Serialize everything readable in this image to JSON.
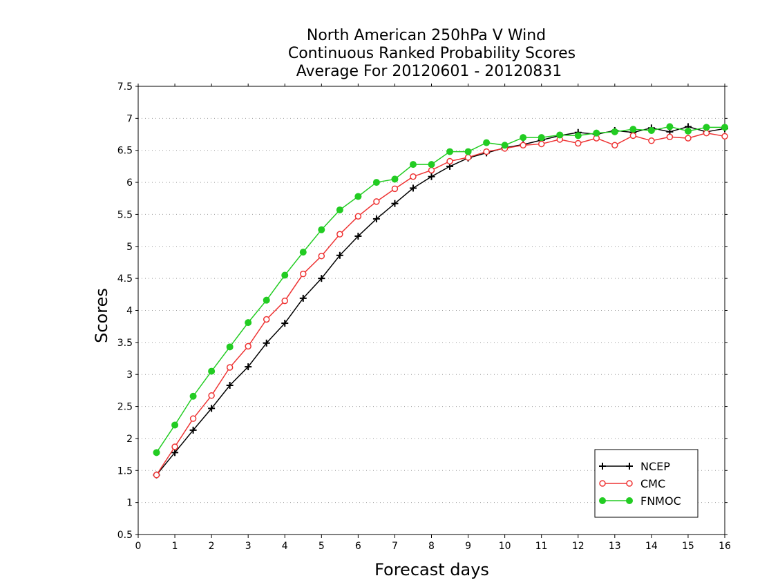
{
  "chart_data": {
    "type": "line",
    "title_lines": [
      "North American 250hPa V Wind",
      "Continuous Ranked Probability Scores",
      "Average For 20120601 - 20120831"
    ],
    "xlabel": "Forecast days",
    "ylabel": "Scores",
    "xlim": [
      0,
      16
    ],
    "ylim": [
      0.5,
      7.5
    ],
    "x_ticks": [
      "0",
      "1",
      "2",
      "3",
      "4",
      "5",
      "6",
      "7",
      "8",
      "9",
      "10",
      "11",
      "12",
      "13",
      "14",
      "15",
      "16"
    ],
    "y_ticks": [
      "0.5",
      "1",
      "1.5",
      "2",
      "2.5",
      "3",
      "3.5",
      "4",
      "4.5",
      "5",
      "5.5",
      "6",
      "6.5",
      "7",
      "7.5"
    ],
    "grid": "horizontal dotted",
    "legend_position": "bottom-right",
    "x": [
      0.5,
      1,
      1.5,
      2,
      2.5,
      3,
      3.5,
      4,
      4.5,
      5,
      5.5,
      6,
      6.5,
      7,
      7.5,
      8,
      8.5,
      9,
      9.5,
      10,
      10.5,
      11,
      11.5,
      12,
      12.5,
      13,
      13.5,
      14,
      14.5,
      15,
      15.5,
      16
    ],
    "series": [
      {
        "name": "NCEP",
        "color": "#000000",
        "marker": "plus",
        "values": [
          1.43,
          1.78,
          2.13,
          2.47,
          2.83,
          3.12,
          3.49,
          3.8,
          4.19,
          4.5,
          4.86,
          5.16,
          5.43,
          5.67,
          5.91,
          6.09,
          6.25,
          6.38,
          6.46,
          6.54,
          6.59,
          6.66,
          6.73,
          6.78,
          6.75,
          6.81,
          6.78,
          6.85,
          6.79,
          6.87,
          6.79,
          6.84
        ]
      },
      {
        "name": "CMC",
        "color": "#ee3333",
        "marker": "open-circle",
        "values": [
          1.43,
          1.87,
          2.31,
          2.67,
          3.11,
          3.44,
          3.86,
          4.15,
          4.57,
          4.85,
          5.19,
          5.47,
          5.7,
          5.9,
          6.09,
          6.19,
          6.33,
          6.39,
          6.48,
          6.53,
          6.58,
          6.6,
          6.67,
          6.61,
          6.69,
          6.58,
          6.73,
          6.65,
          6.71,
          6.69,
          6.77,
          6.72
        ]
      },
      {
        "name": "FNMOC",
        "color": "#22cc22",
        "marker": "filled-circle",
        "values": [
          1.78,
          2.21,
          2.66,
          3.05,
          3.43,
          3.81,
          4.16,
          4.55,
          4.91,
          5.26,
          5.57,
          5.78,
          6.0,
          6.05,
          6.28,
          6.28,
          6.48,
          6.48,
          6.62,
          6.58,
          6.7,
          6.7,
          6.74,
          6.73,
          6.77,
          6.79,
          6.83,
          6.81,
          6.87,
          6.8,
          6.86,
          6.86
        ]
      }
    ]
  }
}
